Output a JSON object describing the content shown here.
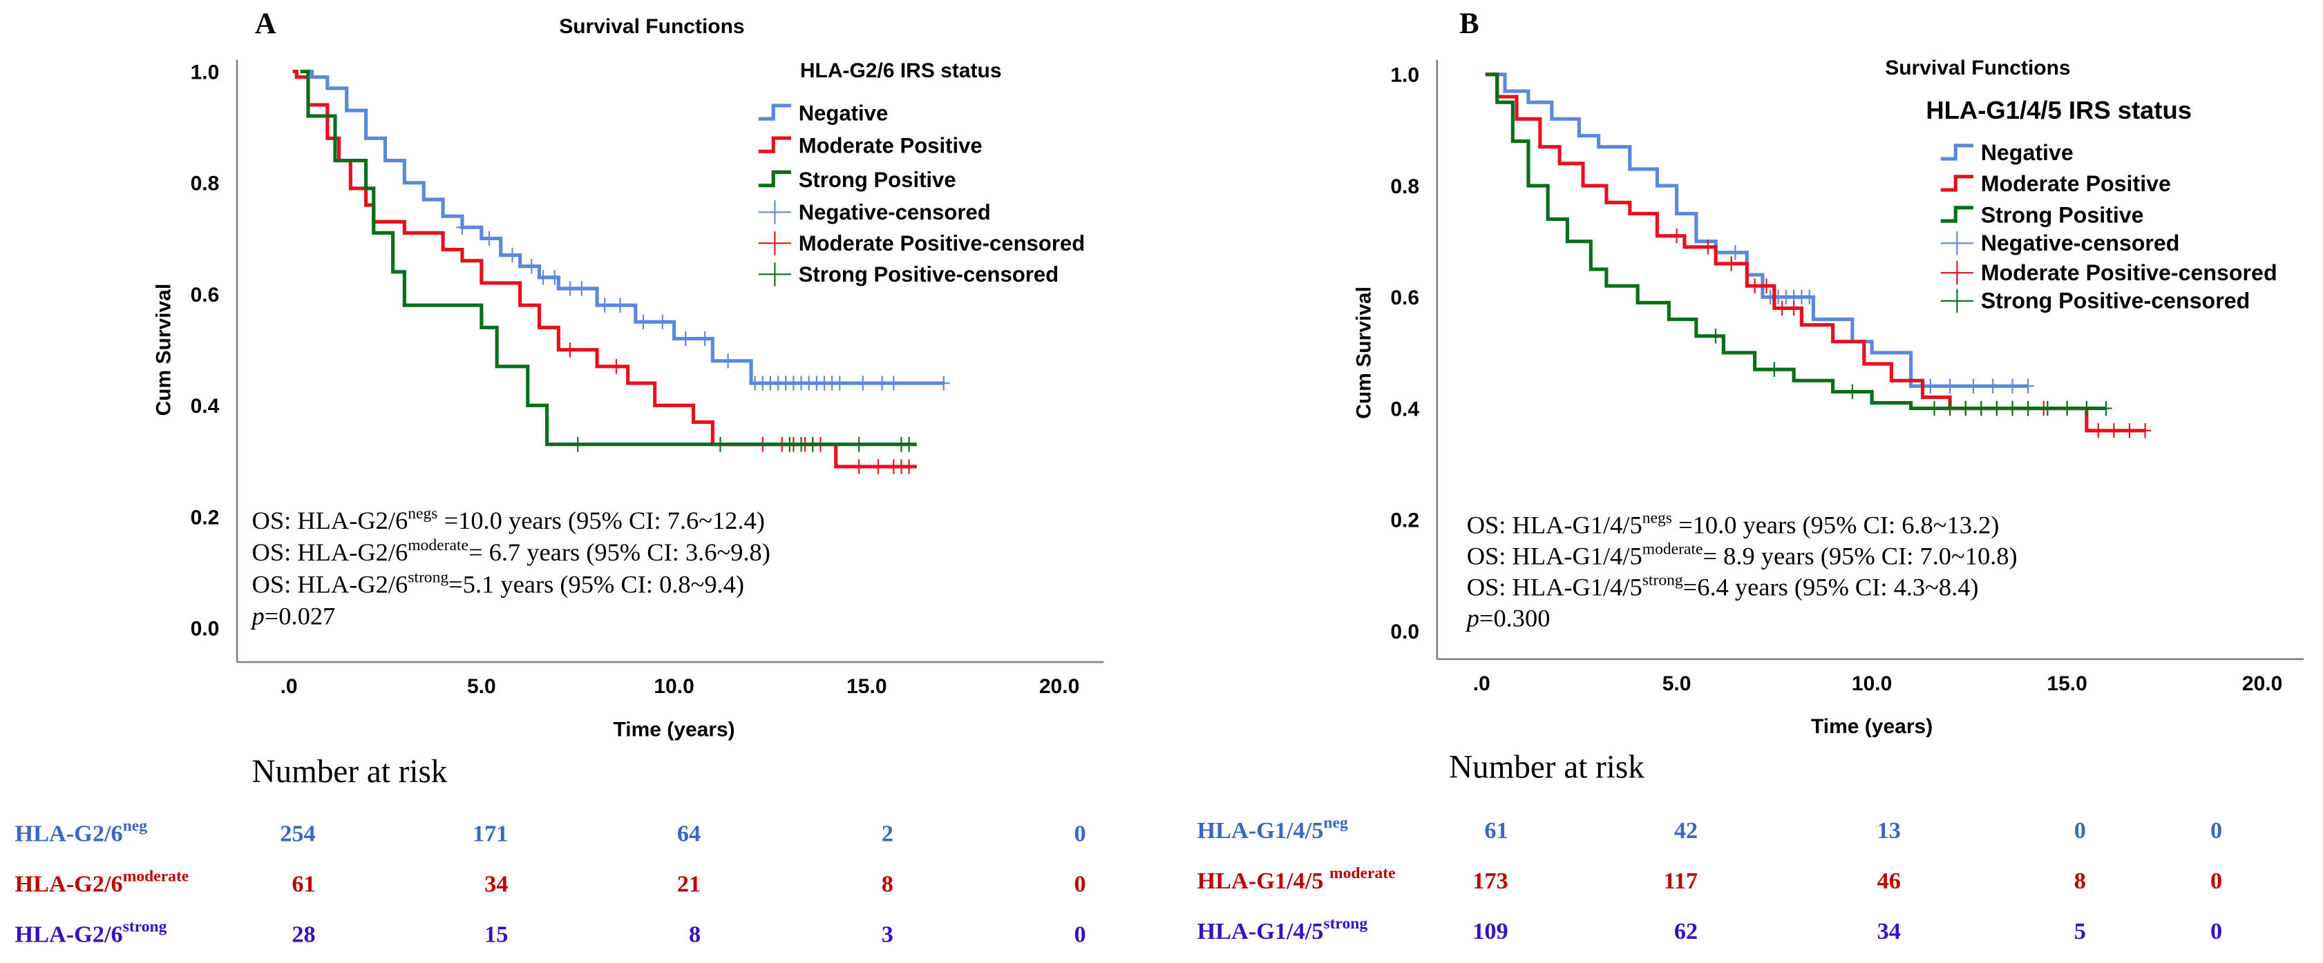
{
  "colors": {
    "negative": "#5b87dc",
    "moderate": "#e8101c",
    "strong": "#0a6e1a",
    "axis": "#808080",
    "risk_neg": "#3b66c9",
    "risk_mod": "#c00000",
    "risk_strong": "#3a0ec8"
  },
  "chart_data": [
    {
      "type": "line",
      "panel_label": "A",
      "title": "Survival Functions",
      "xlabel": "Time (years)",
      "ylabel": "Cum Survival",
      "xlim": [
        0,
        20
      ],
      "ylim": [
        0,
        1
      ],
      "x_ticks": [
        ".0",
        "5.0",
        "10.0",
        "15.0",
        "20.0"
      ],
      "y_ticks": [
        "0.0",
        "0.2",
        "0.4",
        "0.6",
        "0.8",
        "1.0"
      ],
      "legend_title": "HLA-G2/6 IRS status",
      "legend": [
        "Negative",
        "Moderate Positive",
        "Strong Positive",
        "Negative-censored",
        "Moderate Positive-censored",
        "Strong Positive-censored"
      ],
      "series": [
        {
          "name": "Negative",
          "key": "negative",
          "steps": [
            [
              0.3,
              1.0
            ],
            [
              0.6,
              0.99
            ],
            [
              1.0,
              0.97
            ],
            [
              1.5,
              0.93
            ],
            [
              2.0,
              0.88
            ],
            [
              2.5,
              0.84
            ],
            [
              3.0,
              0.8
            ],
            [
              3.5,
              0.77
            ],
            [
              4.0,
              0.74
            ],
            [
              4.5,
              0.72
            ],
            [
              5.0,
              0.7
            ],
            [
              5.5,
              0.67
            ],
            [
              6.0,
              0.65
            ],
            [
              6.5,
              0.63
            ],
            [
              7.0,
              0.61
            ],
            [
              8.0,
              0.58
            ],
            [
              9.0,
              0.55
            ],
            [
              10.0,
              0.52
            ],
            [
              11.0,
              0.48
            ],
            [
              12.0,
              0.44
            ]
          ],
          "end": 17.0,
          "censored": [
            4.5,
            5.2,
            5.8,
            6.3,
            6.6,
            6.9,
            7.3,
            7.6,
            8.2,
            8.6,
            9.2,
            9.7,
            10.3,
            10.8,
            11.4,
            12.1,
            12.3,
            12.5,
            12.7,
            12.9,
            13.1,
            13.3,
            13.5,
            13.7,
            13.9,
            14.1,
            14.3,
            14.9,
            15.4,
            15.7,
            17.0
          ]
        },
        {
          "name": "Moderate Positive",
          "key": "moderate",
          "steps": [
            [
              0.1,
              1.0
            ],
            [
              0.2,
              0.99
            ],
            [
              0.5,
              0.94
            ],
            [
              1.0,
              0.88
            ],
            [
              1.3,
              0.84
            ],
            [
              1.6,
              0.79
            ],
            [
              2.0,
              0.76
            ],
            [
              2.2,
              0.73
            ],
            [
              3.0,
              0.71
            ],
            [
              4.0,
              0.68
            ],
            [
              4.5,
              0.66
            ],
            [
              5.0,
              0.62
            ],
            [
              6.0,
              0.58
            ],
            [
              6.5,
              0.54
            ],
            [
              7.0,
              0.5
            ],
            [
              8.0,
              0.47
            ],
            [
              8.8,
              0.44
            ],
            [
              9.5,
              0.4
            ],
            [
              10.5,
              0.37
            ],
            [
              11.0,
              0.33
            ],
            [
              14.2,
              0.29
            ]
          ],
          "end": 16.3,
          "censored": [
            7.3,
            8.5,
            12.3,
            12.8,
            13.1,
            13.4,
            13.6,
            13.8,
            14.8,
            15.3,
            15.7,
            15.9,
            16.1
          ]
        },
        {
          "name": "Strong Positive",
          "key": "strong",
          "steps": [
            [
              0.3,
              1.0
            ],
            [
              0.5,
              0.92
            ],
            [
              1.2,
              0.84
            ],
            [
              2.0,
              0.79
            ],
            [
              2.2,
              0.71
            ],
            [
              2.7,
              0.64
            ],
            [
              3.0,
              0.58
            ],
            [
              5.0,
              0.54
            ],
            [
              5.4,
              0.47
            ],
            [
              6.2,
              0.4
            ],
            [
              6.7,
              0.33
            ]
          ],
          "end": 16.3,
          "censored": [
            7.5,
            11.2,
            13.0,
            13.3,
            13.6,
            14.8,
            15.9,
            16.1
          ]
        }
      ],
      "annotations": [
        {
          "prefix": "OS: HLA-G2/6",
          "sup": "negs",
          "rest": " =10.0 years (95% CI: 7.6~12.4)"
        },
        {
          "prefix": "OS: HLA-G2/6",
          "sup": "moderate",
          "rest": "= 6.7 years (95% CI: 3.6~9.8)"
        },
        {
          "prefix": "OS: HLA-G2/6",
          "sup": "strong",
          "rest": "=5.1 years (95% CI: 0.8~9.4)"
        }
      ],
      "p_label": "p",
      "p_value": "=0.027",
      "risk_table": {
        "title": "Number at risk",
        "rows": [
          {
            "label": "HLA-G2/6",
            "sup": "neg",
            "key": "risk_neg",
            "values": [
              "254",
              "171",
              "64",
              "2",
              "0"
            ]
          },
          {
            "label": "HLA-G2/6",
            "sup": "moderate",
            "key": "risk_mod",
            "values": [
              "61",
              "34",
              "21",
              "8",
              "0"
            ]
          },
          {
            "label": "HLA-G2/6",
            "sup": "strong",
            "key": "risk_strong",
            "values": [
              "28",
              "15",
              "8",
              "3",
              "0"
            ]
          }
        ]
      }
    },
    {
      "type": "line",
      "panel_label": "B",
      "title": "Survival Functions",
      "xlabel": "Time (years)",
      "ylabel": "Cum Survival",
      "xlim": [
        0,
        20
      ],
      "ylim": [
        0,
        1
      ],
      "x_ticks": [
        ".0",
        "5.0",
        "10.0",
        "15.0",
        "20.0"
      ],
      "y_ticks": [
        "0.0",
        "0.2",
        "0.4",
        "0.6",
        "0.8",
        "1.0"
      ],
      "legend_title": "HLA-G1/4/5 IRS status",
      "legend": [
        "Negative",
        "Moderate Positive",
        "Strong Positive",
        "Negative-censored",
        "Moderate Positive-censored",
        "Strong Positive-censored"
      ],
      "series": [
        {
          "name": "Negative",
          "key": "negative",
          "steps": [
            [
              0.2,
              1.0
            ],
            [
              0.6,
              0.97
            ],
            [
              1.2,
              0.95
            ],
            [
              1.8,
              0.92
            ],
            [
              2.5,
              0.89
            ],
            [
              3.0,
              0.87
            ],
            [
              3.8,
              0.83
            ],
            [
              4.5,
              0.8
            ],
            [
              5.0,
              0.75
            ],
            [
              5.5,
              0.7
            ],
            [
              6.0,
              0.68
            ],
            [
              6.8,
              0.64
            ],
            [
              7.2,
              0.6
            ],
            [
              8.5,
              0.56
            ],
            [
              9.5,
              0.52
            ],
            [
              10.0,
              0.5
            ],
            [
              11.0,
              0.44
            ]
          ],
          "end": 14.0,
          "censored": [
            6.5,
            7.4,
            7.6,
            7.8,
            8.0,
            8.2,
            8.4,
            11.5,
            12.0,
            12.6,
            13.1,
            13.6,
            14.0
          ]
        },
        {
          "name": "Moderate Positive",
          "key": "moderate",
          "steps": [
            [
              0.1,
              1.0
            ],
            [
              0.4,
              0.96
            ],
            [
              0.9,
              0.92
            ],
            [
              1.5,
              0.87
            ],
            [
              2.0,
              0.84
            ],
            [
              2.6,
              0.8
            ],
            [
              3.2,
              0.77
            ],
            [
              3.8,
              0.75
            ],
            [
              4.5,
              0.71
            ],
            [
              5.2,
              0.69
            ],
            [
              6.0,
              0.66
            ],
            [
              6.8,
              0.62
            ],
            [
              7.5,
              0.58
            ],
            [
              8.2,
              0.55
            ],
            [
              9.0,
              0.52
            ],
            [
              9.8,
              0.48
            ],
            [
              10.5,
              0.45
            ],
            [
              11.3,
              0.42
            ],
            [
              12.0,
              0.4
            ],
            [
              15.5,
              0.36
            ]
          ],
          "end": 17.0,
          "censored": [
            5.0,
            5.8,
            6.4,
            7.0,
            7.3,
            7.7,
            8.0,
            12.4,
            12.8,
            13.2,
            13.6,
            14.0,
            14.4,
            15.0,
            15.8,
            16.2,
            16.6,
            17.0
          ]
        },
        {
          "name": "Strong Positive",
          "key": "strong",
          "steps": [
            [
              0.1,
              1.0
            ],
            [
              0.4,
              0.95
            ],
            [
              0.8,
              0.88
            ],
            [
              1.2,
              0.8
            ],
            [
              1.7,
              0.74
            ],
            [
              2.2,
              0.7
            ],
            [
              2.8,
              0.65
            ],
            [
              3.2,
              0.62
            ],
            [
              4.0,
              0.59
            ],
            [
              4.8,
              0.56
            ],
            [
              5.5,
              0.53
            ],
            [
              6.2,
              0.5
            ],
            [
              7.0,
              0.47
            ],
            [
              8.0,
              0.45
            ],
            [
              9.0,
              0.43
            ],
            [
              10.0,
              0.41
            ],
            [
              11.0,
              0.4
            ]
          ],
          "end": 16.0,
          "censored": [
            6.0,
            7.5,
            9.5,
            11.6,
            12.0,
            12.4,
            12.8,
            13.2,
            13.6,
            14.0,
            14.5,
            15.0,
            15.5,
            16.0
          ]
        }
      ],
      "annotations": [
        {
          "prefix": "OS: HLA-G1/4/5",
          "sup": "negs",
          "rest": " =10.0 years (95% CI: 6.8~13.2)"
        },
        {
          "prefix": "OS: HLA-G1/4/5",
          "sup": "moderate",
          "rest": "= 8.9 years (95% CI: 7.0~10.8)"
        },
        {
          "prefix": "OS: HLA-G1/4/5",
          "sup": "strong",
          "rest": "=6.4 years (95% CI: 4.3~8.4)"
        }
      ],
      "p_label": "p",
      "p_value": "=0.300",
      "risk_table": {
        "title": "Number at risk",
        "rows": [
          {
            "label": "HLA-G1/4/5",
            "sup": "neg",
            "key": "risk_neg",
            "values": [
              "61",
              "42",
              "13",
              "0",
              "0"
            ]
          },
          {
            "label": "HLA-G1/4/5 ",
            "sup": "moderate",
            "key": "risk_mod",
            "values": [
              "173",
              "117",
              "46",
              "8",
              "0"
            ]
          },
          {
            "label": "HLA-G1/4/5",
            "sup": "strong",
            "key": "risk_strong",
            "values": [
              "109",
              "62",
              "34",
              "5",
              "0"
            ]
          }
        ]
      }
    }
  ]
}
